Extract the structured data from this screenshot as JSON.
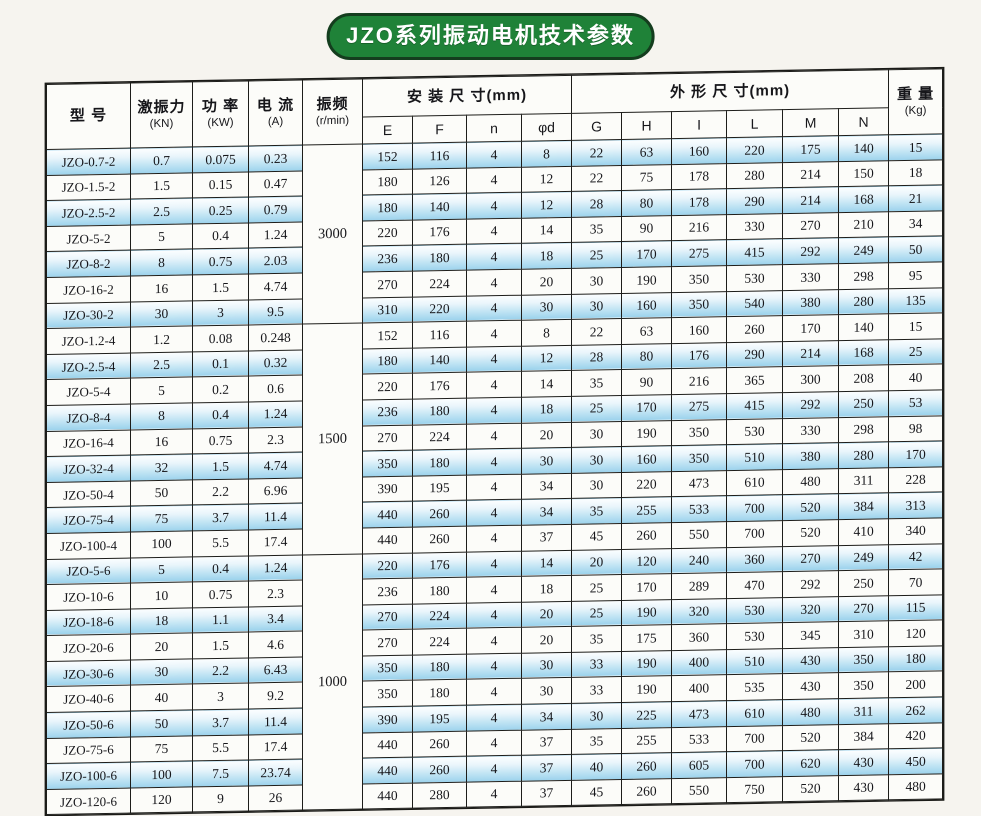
{
  "title": "JZO系列振动电机技术参数",
  "colors": {
    "title_bg": "#1f8238",
    "row_highlight": "#9bd2ec"
  },
  "table": {
    "headers": {
      "model": "型  号",
      "force": "激振力",
      "force_unit": "(KN)",
      "power": "功 率",
      "power_unit": "(KW)",
      "current": "电 流",
      "current_unit": "(A)",
      "freq": "振频",
      "freq_unit": "(r/min)",
      "install": "安 装 尺 寸(mm)",
      "outline": "外 形 尺 寸(mm)",
      "weight": "重 量",
      "weight_unit": "(Kg)",
      "sub": [
        "E",
        "F",
        "n",
        "φd",
        "G",
        "H",
        "I",
        "L",
        "M",
        "N"
      ]
    },
    "groups": [
      {
        "freq": "3000",
        "rows": [
          {
            "model": "JZO-0.7-2",
            "hl": true,
            "cells": [
              "0.7",
              "0.075",
              "0.23",
              "152",
              "116",
              "4",
              "8",
              "22",
              "63",
              "160",
              "220",
              "175",
              "140",
              "15"
            ]
          },
          {
            "model": "JZO-1.5-2",
            "hl": false,
            "cells": [
              "1.5",
              "0.15",
              "0.47",
              "180",
              "126",
              "4",
              "12",
              "22",
              "75",
              "178",
              "280",
              "214",
              "150",
              "18"
            ]
          },
          {
            "model": "JZO-2.5-2",
            "hl": true,
            "cells": [
              "2.5",
              "0.25",
              "0.79",
              "180",
              "140",
              "4",
              "12",
              "28",
              "80",
              "178",
              "290",
              "214",
              "168",
              "21"
            ]
          },
          {
            "model": "JZO-5-2",
            "hl": false,
            "cells": [
              "5",
              "0.4",
              "1.24",
              "220",
              "176",
              "4",
              "14",
              "35",
              "90",
              "216",
              "330",
              "270",
              "210",
              "34"
            ]
          },
          {
            "model": "JZO-8-2",
            "hl": true,
            "cells": [
              "8",
              "0.75",
              "2.03",
              "236",
              "180",
              "4",
              "18",
              "25",
              "170",
              "275",
              "415",
              "292",
              "249",
              "50"
            ]
          },
          {
            "model": "JZO-16-2",
            "hl": false,
            "cells": [
              "16",
              "1.5",
              "4.74",
              "270",
              "224",
              "4",
              "20",
              "30",
              "190",
              "350",
              "530",
              "330",
              "298",
              "95"
            ]
          },
          {
            "model": "JZO-30-2",
            "hl": true,
            "cells": [
              "30",
              "3",
              "9.5",
              "310",
              "220",
              "4",
              "30",
              "30",
              "160",
              "350",
              "540",
              "380",
              "280",
              "135"
            ]
          }
        ]
      },
      {
        "freq": "1500",
        "rows": [
          {
            "model": "JZO-1.2-4",
            "hl": false,
            "cells": [
              "1.2",
              "0.08",
              "0.248",
              "152",
              "116",
              "4",
              "8",
              "22",
              "63",
              "160",
              "260",
              "170",
              "140",
              "15"
            ]
          },
          {
            "model": "JZO-2.5-4",
            "hl": true,
            "cells": [
              "2.5",
              "0.1",
              "0.32",
              "180",
              "140",
              "4",
              "12",
              "28",
              "80",
              "176",
              "290",
              "214",
              "168",
              "25"
            ]
          },
          {
            "model": "JZO-5-4",
            "hl": false,
            "cells": [
              "5",
              "0.2",
              "0.6",
              "220",
              "176",
              "4",
              "14",
              "35",
              "90",
              "216",
              "365",
              "300",
              "208",
              "40"
            ]
          },
          {
            "model": "JZO-8-4",
            "hl": true,
            "cells": [
              "8",
              "0.4",
              "1.24",
              "236",
              "180",
              "4",
              "18",
              "25",
              "170",
              "275",
              "415",
              "292",
              "250",
              "53"
            ]
          },
          {
            "model": "JZO-16-4",
            "hl": false,
            "cells": [
              "16",
              "0.75",
              "2.3",
              "270",
              "224",
              "4",
              "20",
              "30",
              "190",
              "350",
              "530",
              "330",
              "298",
              "98"
            ]
          },
          {
            "model": "JZO-32-4",
            "hl": true,
            "cells": [
              "32",
              "1.5",
              "4.74",
              "350",
              "180",
              "4",
              "30",
              "30",
              "160",
              "350",
              "510",
              "380",
              "280",
              "170"
            ]
          },
          {
            "model": "JZO-50-4",
            "hl": false,
            "cells": [
              "50",
              "2.2",
              "6.96",
              "390",
              "195",
              "4",
              "34",
              "30",
              "220",
              "473",
              "610",
              "480",
              "311",
              "228"
            ]
          },
          {
            "model": "JZO-75-4",
            "hl": true,
            "cells": [
              "75",
              "3.7",
              "11.4",
              "440",
              "260",
              "4",
              "34",
              "35",
              "255",
              "533",
              "700",
              "520",
              "384",
              "313"
            ]
          },
          {
            "model": "JZO-100-4",
            "hl": false,
            "cells": [
              "100",
              "5.5",
              "17.4",
              "440",
              "260",
              "4",
              "37",
              "45",
              "260",
              "550",
              "700",
              "520",
              "410",
              "340"
            ]
          }
        ]
      },
      {
        "freq": "1000",
        "rows": [
          {
            "model": "JZO-5-6",
            "hl": true,
            "cells": [
              "5",
              "0.4",
              "1.24",
              "220",
              "176",
              "4",
              "14",
              "20",
              "120",
              "240",
              "360",
              "270",
              "249",
              "42"
            ]
          },
          {
            "model": "JZO-10-6",
            "hl": false,
            "cells": [
              "10",
              "0.75",
              "2.3",
              "236",
              "180",
              "4",
              "18",
              "25",
              "170",
              "289",
              "470",
              "292",
              "250",
              "70"
            ]
          },
          {
            "model": "JZO-18-6",
            "hl": true,
            "cells": [
              "18",
              "1.1",
              "3.4",
              "270",
              "224",
              "4",
              "20",
              "25",
              "190",
              "320",
              "530",
              "320",
              "270",
              "115"
            ]
          },
          {
            "model": "JZO-20-6",
            "hl": false,
            "cells": [
              "20",
              "1.5",
              "4.6",
              "270",
              "224",
              "4",
              "20",
              "35",
              "175",
              "360",
              "530",
              "345",
              "310",
              "120"
            ]
          },
          {
            "model": "JZO-30-6",
            "hl": true,
            "cells": [
              "30",
              "2.2",
              "6.43",
              "350",
              "180",
              "4",
              "30",
              "33",
              "190",
              "400",
              "510",
              "430",
              "350",
              "180"
            ]
          },
          {
            "model": "JZO-40-6",
            "hl": false,
            "cells": [
              "40",
              "3",
              "9.2",
              "350",
              "180",
              "4",
              "30",
              "33",
              "190",
              "400",
              "535",
              "430",
              "350",
              "200"
            ]
          },
          {
            "model": "JZO-50-6",
            "hl": true,
            "cells": [
              "50",
              "3.7",
              "11.4",
              "390",
              "195",
              "4",
              "34",
              "30",
              "225",
              "473",
              "610",
              "480",
              "311",
              "262"
            ]
          },
          {
            "model": "JZO-75-6",
            "hl": false,
            "cells": [
              "75",
              "5.5",
              "17.4",
              "440",
              "260",
              "4",
              "37",
              "35",
              "255",
              "533",
              "700",
              "520",
              "384",
              "420"
            ]
          },
          {
            "model": "JZO-100-6",
            "hl": true,
            "cells": [
              "100",
              "7.5",
              "23.74",
              "440",
              "260",
              "4",
              "37",
              "40",
              "260",
              "605",
              "700",
              "620",
              "430",
              "450"
            ]
          },
          {
            "model": "JZO-120-6",
            "hl": false,
            "cells": [
              "120",
              "9",
              "26",
              "440",
              "280",
              "4",
              "37",
              "45",
              "260",
              "550",
              "750",
              "520",
              "430",
              "480"
            ]
          }
        ]
      }
    ]
  }
}
